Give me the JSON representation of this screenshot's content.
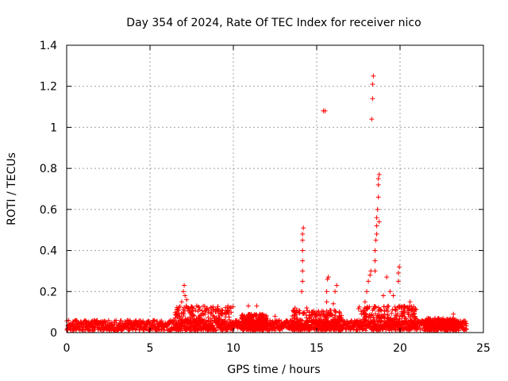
{
  "chart_data": {
    "type": "scatter",
    "title": "Day 354 of 2024, Rate Of TEC Index for receiver nico",
    "xlabel": "GPS time / hours",
    "ylabel": "ROTI / TECUs",
    "xlim": [
      0,
      25
    ],
    "ylim": [
      0,
      1.4
    ],
    "xticks": [
      0,
      5,
      10,
      15,
      20,
      25
    ],
    "xtick_labels": [
      "0",
      "5",
      "10",
      "15",
      "20",
      "25"
    ],
    "yticks": [
      0,
      0.2,
      0.4,
      0.6,
      0.8,
      1,
      1.2,
      1.4
    ],
    "ytick_labels": [
      "0",
      "0.2",
      "0.4",
      "0.6",
      "0.8",
      "1",
      "1.2",
      "1.4"
    ],
    "grid": true,
    "marker": "+",
    "series": [
      {
        "name": "ROTI",
        "color": "#ff0000",
        "note": "Dense baseline of ROTI values around 0.02-0.06 TECU/s throughout the day; representative spikes listed below",
        "baseline": {
          "x_range": [
            0,
            24
          ],
          "y_range": [
            0.01,
            0.06
          ]
        },
        "points": [
          [
            6.9,
            0.15
          ],
          [
            7.0,
            0.2
          ],
          [
            7.05,
            0.23
          ],
          [
            7.1,
            0.18
          ],
          [
            7.2,
            0.16
          ],
          [
            7.3,
            0.12
          ],
          [
            7.5,
            0.1
          ],
          [
            7.8,
            0.13
          ],
          [
            8.0,
            0.11
          ],
          [
            8.3,
            0.09
          ],
          [
            8.7,
            0.1
          ],
          [
            9.0,
            0.11
          ],
          [
            9.3,
            0.11
          ],
          [
            9.6,
            0.1
          ],
          [
            10.9,
            0.13
          ],
          [
            11.4,
            0.13
          ],
          [
            11.6,
            0.09
          ],
          [
            12.5,
            0.08
          ],
          [
            13.7,
            0.12
          ],
          [
            14.1,
            0.2
          ],
          [
            14.15,
            0.25
          ],
          [
            14.15,
            0.3
          ],
          [
            14.15,
            0.35
          ],
          [
            14.15,
            0.4
          ],
          [
            14.15,
            0.45
          ],
          [
            14.15,
            0.48
          ],
          [
            14.2,
            0.51
          ],
          [
            14.4,
            0.12
          ],
          [
            15.0,
            0.1
          ],
          [
            15.4,
            1.08
          ],
          [
            15.5,
            1.08
          ],
          [
            15.6,
            0.15
          ],
          [
            15.6,
            0.2
          ],
          [
            15.65,
            0.26
          ],
          [
            15.7,
            0.27
          ],
          [
            16.0,
            0.14
          ],
          [
            16.1,
            0.2
          ],
          [
            16.2,
            0.23
          ],
          [
            17.9,
            0.15
          ],
          [
            18.0,
            0.2
          ],
          [
            18.1,
            0.25
          ],
          [
            18.2,
            0.28
          ],
          [
            18.25,
            0.3
          ],
          [
            18.3,
            1.04
          ],
          [
            18.35,
            1.14
          ],
          [
            18.35,
            1.21
          ],
          [
            18.4,
            1.25
          ],
          [
            18.5,
            0.3
          ],
          [
            18.5,
            0.35
          ],
          [
            18.5,
            0.4
          ],
          [
            18.55,
            0.45
          ],
          [
            18.6,
            0.48
          ],
          [
            18.6,
            0.52
          ],
          [
            18.6,
            0.56
          ],
          [
            18.65,
            0.6
          ],
          [
            18.7,
            0.66
          ],
          [
            18.7,
            0.72
          ],
          [
            18.7,
            0.75
          ],
          [
            18.75,
            0.77
          ],
          [
            18.75,
            0.54
          ],
          [
            19.0,
            0.18
          ],
          [
            19.2,
            0.27
          ],
          [
            19.4,
            0.2
          ],
          [
            19.6,
            0.18
          ],
          [
            19.9,
            0.25
          ],
          [
            19.9,
            0.29
          ],
          [
            19.95,
            0.32
          ],
          [
            20.6,
            0.15
          ],
          [
            22.1,
            0.07
          ],
          [
            23.2,
            0.09
          ]
        ]
      }
    ]
  }
}
